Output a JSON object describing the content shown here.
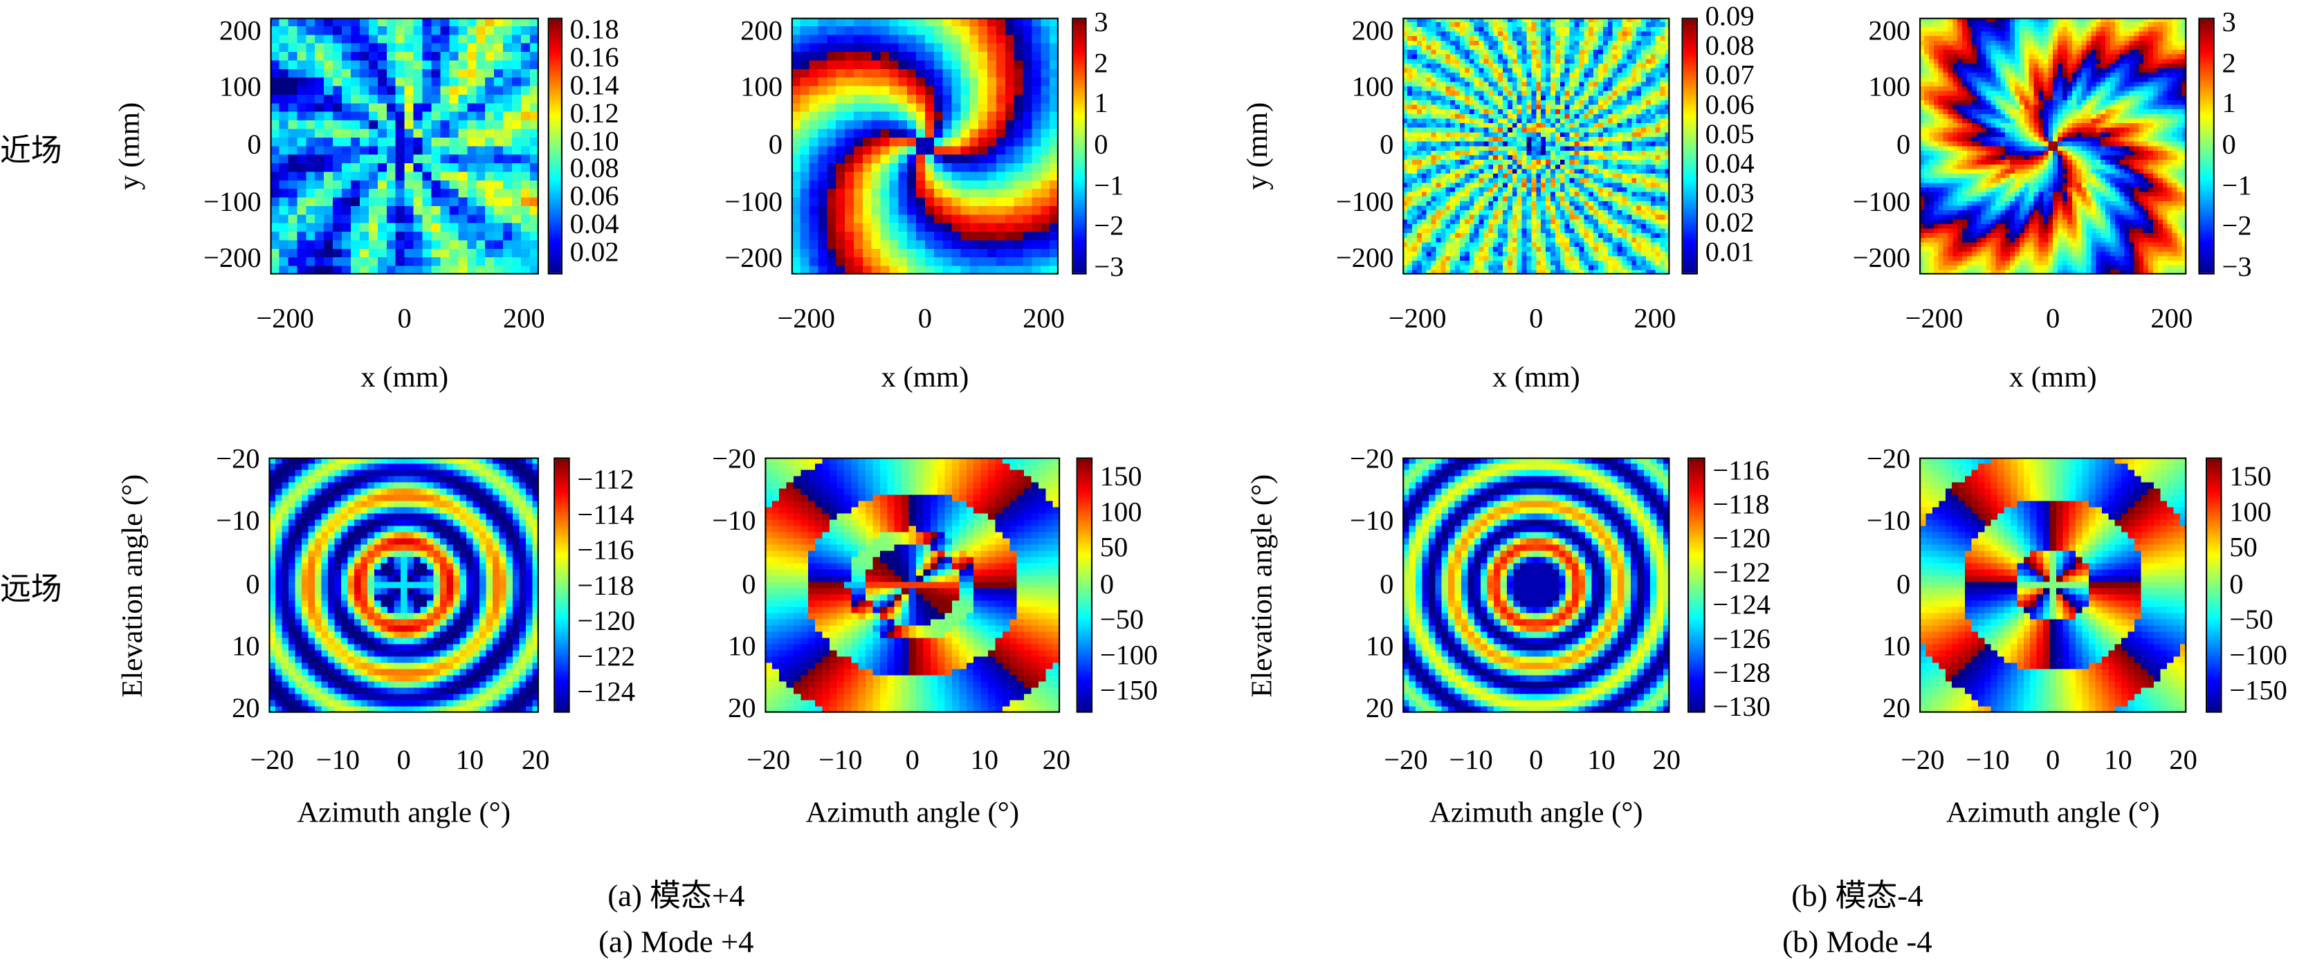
{
  "row_labels": {
    "near": "近场",
    "far": "远场"
  },
  "captions": {
    "a_cn": "(a) 模态+4",
    "a_en": "(a) Mode +4",
    "b_cn": "(b) 模态-4",
    "b_en": "(b) Mode -4"
  },
  "chart_data": [
    {
      "type": "heatmap",
      "panel": "mode+4 near-field amplitude",
      "xlabel": "x (mm)",
      "ylabel": "y (mm)",
      "xlim": [
        -225,
        225
      ],
      "ylim": [
        -225,
        225
      ],
      "xticks": [
        "-200",
        "0",
        "200"
      ],
      "yticks": [
        "200",
        "100",
        "0",
        "-100",
        "-200"
      ],
      "clim": [
        0.005,
        0.19
      ],
      "cticks": [
        "0.18",
        "0.16",
        "0.14",
        "0.12",
        "0.10",
        "0.08",
        "0.06",
        "0.04",
        "0.02"
      ],
      "colormap": "jet"
    },
    {
      "type": "heatmap",
      "panel": "mode+4 near-field phase",
      "xlabel": "x (mm)",
      "ylabel": "",
      "xlim": [
        -225,
        225
      ],
      "ylim": [
        -225,
        225
      ],
      "xticks": [
        "-200",
        "0",
        "200"
      ],
      "yticks": [
        "200",
        "100",
        "0",
        "-100",
        "-200"
      ],
      "clim": [
        -3.14,
        3.14
      ],
      "cticks": [
        "3",
        "2",
        "1",
        "0",
        "-1",
        "-2",
        "-3"
      ],
      "colormap": "jet"
    },
    {
      "type": "heatmap",
      "panel": "mode-4 near-field amplitude",
      "xlabel": "x (mm)",
      "ylabel": "y (mm)",
      "xlim": [
        -225,
        225
      ],
      "ylim": [
        -225,
        225
      ],
      "xticks": [
        "-200",
        "0",
        "200"
      ],
      "yticks": [
        "200",
        "100",
        "0",
        "-100",
        "-200"
      ],
      "clim": [
        0.003,
        0.09
      ],
      "cticks": [
        "0.09",
        "0.08",
        "0.07",
        "0.06",
        "0.05",
        "0.04",
        "0.03",
        "0.02",
        "0.01"
      ],
      "colormap": "jet"
    },
    {
      "type": "heatmap",
      "panel": "mode-4 near-field phase",
      "xlabel": "x (mm)",
      "ylabel": "",
      "xlim": [
        -225,
        225
      ],
      "ylim": [
        -225,
        225
      ],
      "xticks": [
        "-200",
        "0",
        "200"
      ],
      "yticks": [
        "200",
        "100",
        "0",
        "-100",
        "-200"
      ],
      "clim": [
        -3.14,
        3.14
      ],
      "cticks": [
        "3",
        "2",
        "1",
        "0",
        "-1",
        "-2",
        "-3"
      ],
      "colormap": "jet"
    },
    {
      "type": "heatmap",
      "panel": "mode+4 far-field amplitude",
      "xlabel": "Azimuth angle (°)",
      "ylabel": "Elevation angle (°)",
      "xlim": [
        -20.5,
        20.5
      ],
      "ylim": [
        -20.5,
        20.5
      ],
      "xticks": [
        "-20",
        "-10",
        "0",
        "10",
        "20"
      ],
      "yticks": [
        "-20",
        "-10",
        "0",
        "10",
        "20"
      ],
      "clim": [
        -125.1,
        -110.7
      ],
      "cticks": [
        "-112",
        "-114",
        "-116",
        "-118",
        "-120",
        "-122",
        "-124"
      ],
      "colormap": "jet"
    },
    {
      "type": "heatmap",
      "panel": "mode+4 far-field phase",
      "xlabel": "Azimuth angle (°)",
      "ylabel": "",
      "xlim": [
        -20.5,
        20.5
      ],
      "ylim": [
        -20.5,
        20.5
      ],
      "xticks": [
        "-20",
        "-10",
        "0",
        "10",
        "20"
      ],
      "yticks": [
        "-20",
        "-10",
        "0",
        "10",
        "20"
      ],
      "clim": [
        -180,
        180
      ],
      "cticks": [
        "150",
        "100",
        "50",
        "0",
        "-50",
        "-100",
        "-150"
      ],
      "colormap": "jet"
    },
    {
      "type": "heatmap",
      "panel": "mode-4 far-field amplitude",
      "xlabel": "Azimuth angle (°)",
      "ylabel": "Elevation angle (°)",
      "xlim": [
        -20.5,
        20.5
      ],
      "ylim": [
        -20.5,
        20.5
      ],
      "xticks": [
        "-20",
        "-10",
        "0",
        "10",
        "20"
      ],
      "yticks": [
        "-20",
        "-10",
        "0",
        "10",
        "20"
      ],
      "clim": [
        -130.3,
        -115.1
      ],
      "cticks": [
        "-116",
        "-118",
        "-120",
        "-122",
        "-124",
        "-126",
        "-128",
        "-130"
      ],
      "colormap": "jet"
    },
    {
      "type": "heatmap",
      "panel": "mode-4 far-field phase",
      "xlabel": "Azimuth angle (°)",
      "ylabel": "",
      "xlim": [
        -20.5,
        20.5
      ],
      "ylim": [
        -20.5,
        20.5
      ],
      "xticks": [
        "-20",
        "-10",
        "0",
        "10",
        "20"
      ],
      "yticks": [
        "-20",
        "-10",
        "0",
        "10",
        "20"
      ],
      "clim": [
        -180,
        180
      ],
      "cticks": [
        "150",
        "100",
        "50",
        "0",
        "-50",
        "-100",
        "-150"
      ],
      "colormap": "jet"
    }
  ]
}
